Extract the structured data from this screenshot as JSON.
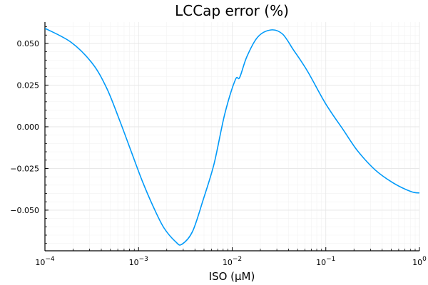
{
  "chart_data": {
    "type": "line",
    "title": "LCCap error (%)",
    "xlabel": "ISO (μM)",
    "ylabel": "",
    "xscale": "log10",
    "xlim": [
      0.0001,
      1
    ],
    "ylim": [
      -0.0744,
      0.0628
    ],
    "grid": true,
    "legend": "none",
    "x_ticks": [
      {
        "value": 0.0001,
        "base": "10",
        "exp": "−4"
      },
      {
        "value": 0.001,
        "base": "10",
        "exp": "−3"
      },
      {
        "value": 0.01,
        "base": "10",
        "exp": "−2"
      },
      {
        "value": 0.1,
        "base": "10",
        "exp": "−1"
      },
      {
        "value": 1,
        "base": "10",
        "exp": "0"
      }
    ],
    "y_ticks": [
      {
        "value": 0.05,
        "label": "0.050"
      },
      {
        "value": 0.025,
        "label": "0.025"
      },
      {
        "value": 0.0,
        "label": "0.000"
      },
      {
        "value": -0.025,
        "label": "−0.025"
      },
      {
        "value": -0.05,
        "label": "−0.050"
      }
    ],
    "series": [
      {
        "name": "y1",
        "color": "#009af9",
        "x": [
          0.0001,
          0.000191,
          0.000323,
          0.00046,
          0.00063,
          0.000846,
          0.0011,
          0.00143,
          0.00186,
          0.0025,
          0.0029,
          0.00377,
          0.00491,
          0.0064,
          0.00833,
          0.0108,
          0.012,
          0.0143,
          0.0187,
          0.026,
          0.0345,
          0.045,
          0.0638,
          0.0988,
          0.153,
          0.219,
          0.339,
          0.525,
          0.813,
          1.0
        ],
        "y": [
          0.0591,
          0.0506,
          0.0378,
          0.0228,
          0.0036,
          -0.0157,
          -0.0328,
          -0.0477,
          -0.0605,
          -0.0691,
          -0.0705,
          -0.0628,
          -0.0436,
          -0.0222,
          0.0077,
          0.0282,
          0.0295,
          0.0419,
          0.0538,
          0.0581,
          0.0556,
          0.0462,
          0.0333,
          0.0141,
          -0.0017,
          -0.0145,
          -0.026,
          -0.0337,
          -0.0389,
          -0.0397
        ]
      }
    ]
  }
}
